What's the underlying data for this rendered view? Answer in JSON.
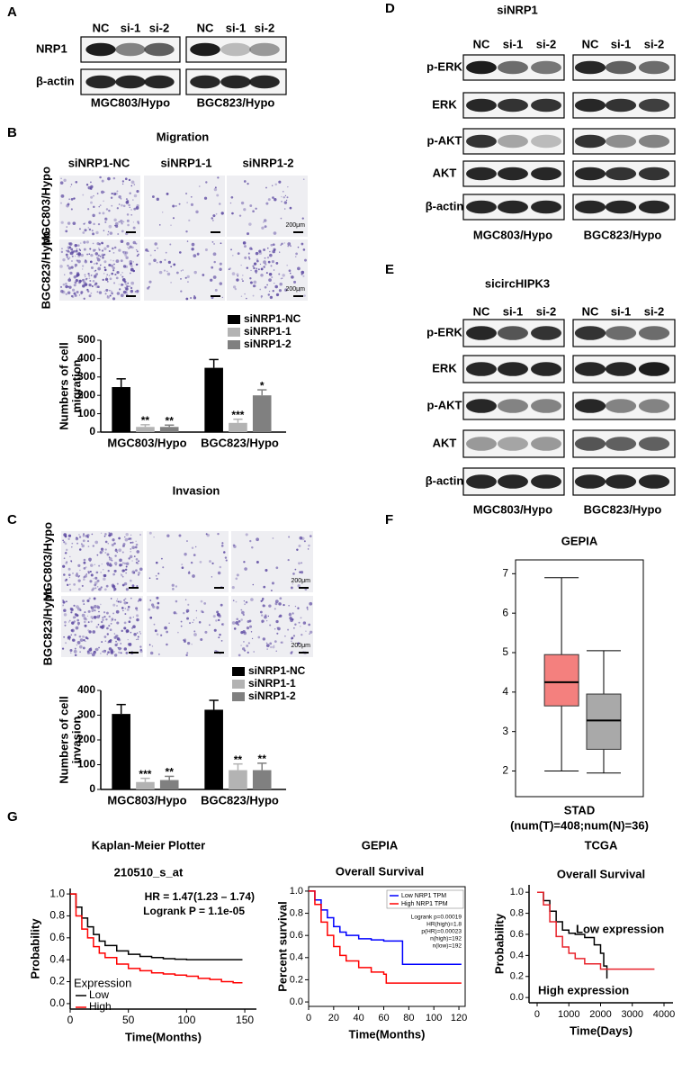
{
  "panel_labels": [
    "A",
    "B",
    "C",
    "D",
    "E",
    "F",
    "G"
  ],
  "blot_a": {
    "lanes": [
      "NC",
      "si-1",
      "si-2",
      "NC",
      "si-1",
      "si-2"
    ],
    "rows": [
      "NRP1",
      "β-actin"
    ],
    "cell_lines": [
      "MGC803/Hypo",
      "BGC823/Hypo"
    ]
  },
  "micro_b": {
    "title": "Migration",
    "columns": [
      "siNRP1-NC",
      "siNRP1-1",
      "siNRP1-2"
    ],
    "rows": [
      "MGC803/Hypo",
      "BGC823/Hypo"
    ],
    "scale": "200μm"
  },
  "micro_c": {
    "title": "Invasion",
    "columns": [
      "siNRP1-NC",
      "siNRP1-1",
      "siNRP1-2"
    ],
    "rows": [
      "MGC803/Hypo",
      "BGC823/Hypo"
    ],
    "scale": "200μm"
  },
  "blot_d": {
    "title": "siNRP1",
    "lanes": [
      "NC",
      "si-1",
      "si-2",
      "NC",
      "si-1",
      "si-2"
    ],
    "rows": [
      "p-ERK",
      "ERK",
      "p-AKT",
      "AKT",
      "β-actin"
    ],
    "cell_lines": [
      "MGC803/Hypo",
      "BGC823/Hypo"
    ]
  },
  "blot_e": {
    "title": "sicircHIPK3",
    "lanes": [
      "NC",
      "si-1",
      "si-2",
      "NC",
      "si-1",
      "si-2"
    ],
    "rows": [
      "p-ERK",
      "ERK",
      "p-AKT",
      "AKT",
      "β-actin"
    ],
    "cell_lines": [
      "MGC803/Hypo",
      "BGC823/Hypo"
    ]
  },
  "chart_data": [
    {
      "type": "bar",
      "ylabel": [
        "Numbers of cell",
        "migration"
      ],
      "categories": [
        "MGC803/Hypo",
        "BGC823/Hypo"
      ],
      "ylim": [
        0,
        500
      ],
      "yticks": [
        0,
        100,
        200,
        300,
        400,
        500
      ],
      "series": [
        {
          "name": "siNRP1-NC",
          "color": "#000000",
          "values": [
            245,
            350
          ],
          "errors": [
            45,
            45
          ]
        },
        {
          "name": "siNRP1-1",
          "color": "#b3b3b3",
          "values": [
            28,
            50
          ],
          "errors": [
            12,
            20
          ],
          "significance": [
            "**",
            "***"
          ]
        },
        {
          "name": "siNRP1-2",
          "color": "#808080",
          "values": [
            28,
            200
          ],
          "errors": [
            10,
            30
          ],
          "significance": [
            "**",
            "*"
          ]
        }
      ]
    },
    {
      "type": "bar",
      "ylabel": [
        "Numbers of cell",
        "invasion"
      ],
      "categories": [
        "MGC803/Hypo",
        "BGC823/Hypo"
      ],
      "ylim": [
        0,
        400
      ],
      "yticks": [
        0,
        100,
        200,
        300,
        400
      ],
      "series": [
        {
          "name": "siNRP1-NC",
          "color": "#000000",
          "values": [
            305,
            322
          ],
          "errors": [
            38,
            38
          ]
        },
        {
          "name": "siNRP1-1",
          "color": "#b3b3b3",
          "values": [
            30,
            78
          ],
          "errors": [
            15,
            25
          ],
          "significance": [
            "***",
            "**"
          ]
        },
        {
          "name": "siNRP1-2",
          "color": "#808080",
          "values": [
            38,
            78
          ],
          "errors": [
            15,
            28
          ],
          "significance": [
            "**",
            "**"
          ]
        }
      ]
    },
    {
      "type": "box",
      "title": "GEPIA",
      "xlabel": [
        "STAD",
        "(num(T)=408;num(N)=36)"
      ],
      "ylim": [
        1.35,
        7.35
      ],
      "yticks": [
        2,
        3,
        4,
        5,
        6,
        7
      ],
      "boxes": [
        {
          "color": "#f4807e",
          "min": 2.0,
          "q1": 3.65,
          "median": 4.25,
          "q3": 4.95,
          "max": 6.9
        },
        {
          "color": "#a9a9a9",
          "min": 1.95,
          "q1": 2.55,
          "median": 3.28,
          "q3": 3.95,
          "max": 5.05
        }
      ]
    },
    {
      "type": "survival",
      "title": "Kaplan-Meier Plotter",
      "subtitle": "210510_s_at",
      "xlabel": "Time(Months)",
      "ylabel": "Probability",
      "xlim": [
        0,
        160
      ],
      "xticks": [
        0,
        50,
        100,
        150
      ],
      "ylim": [
        -0.05,
        1.05
      ],
      "yticks": [
        {
          "value": 0,
          "label": "0.0"
        },
        0.2,
        0.4,
        0.6,
        0.8,
        {
          "value": 1,
          "label": "1.0"
        }
      ],
      "annotations": [
        "HR = 1.47(1.23 – 1.74)",
        "Logrank P = 1.1e-05"
      ],
      "legend_title": "Expression",
      "series": [
        {
          "name": "Low",
          "color": "#000000",
          "x": [
            0,
            5,
            10,
            15,
            20,
            25,
            30,
            40,
            50,
            60,
            70,
            80,
            90,
            100,
            110,
            120,
            130,
            140,
            148
          ],
          "values": [
            1,
            0.88,
            0.78,
            0.7,
            0.63,
            0.57,
            0.53,
            0.48,
            0.45,
            0.43,
            0.42,
            0.41,
            0.405,
            0.4,
            0.4,
            0.4,
            0.4,
            0.4,
            0.4
          ]
        },
        {
          "name": "High",
          "color": "#ff0000",
          "x": [
            0,
            5,
            10,
            15,
            20,
            25,
            30,
            40,
            50,
            60,
            70,
            80,
            90,
            100,
            110,
            120,
            130,
            140,
            148
          ],
          "values": [
            1,
            0.8,
            0.68,
            0.6,
            0.52,
            0.46,
            0.42,
            0.36,
            0.32,
            0.3,
            0.28,
            0.27,
            0.26,
            0.25,
            0.23,
            0.22,
            0.2,
            0.19,
            0.19
          ]
        }
      ]
    },
    {
      "type": "survival",
      "title": "GEPIA",
      "subtitle": "Overall Survival",
      "xlabel": "Time(Months)",
      "ylabel": "Percent survival",
      "xlim": [
        0,
        125
      ],
      "xticks": [
        0,
        20,
        40,
        60,
        80,
        100,
        120
      ],
      "ylim": [
        -0.04,
        1.04
      ],
      "yticks": [
        {
          "value": 0,
          "label": "0.0"
        },
        0.2,
        0.4,
        0.6,
        0.8,
        {
          "value": 1,
          "label": "1.0"
        }
      ],
      "annotations": [
        "Logrank p=0.00019",
        "HR(high)=1.8",
        "p(HR)=0.00023",
        "n(high)=192",
        "n(low)=192"
      ],
      "series": [
        {
          "name": "Low NRP1 TPM",
          "color": "#0000ff",
          "x": [
            0,
            5,
            10,
            15,
            20,
            25,
            30,
            40,
            50,
            60,
            62,
            75,
            80,
            100,
            122
          ],
          "values": [
            1,
            0.92,
            0.83,
            0.76,
            0.68,
            0.63,
            0.6,
            0.57,
            0.56,
            0.55,
            0.55,
            0.34,
            0.34,
            0.34,
            0.34
          ]
        },
        {
          "name": "High NRP1 TPM",
          "color": "#ff0000",
          "x": [
            0,
            5,
            10,
            15,
            20,
            25,
            30,
            40,
            50,
            60,
            62,
            75,
            80,
            100,
            122
          ],
          "values": [
            1,
            0.88,
            0.72,
            0.6,
            0.5,
            0.42,
            0.37,
            0.31,
            0.27,
            0.25,
            0.17,
            0.17,
            0.17,
            0.17,
            0.17
          ]
        }
      ]
    },
    {
      "type": "survival",
      "title": "TCGA",
      "subtitle": "Overall Survival",
      "xlabel": "Time(Days)",
      "ylabel": "Probability",
      "xlim": [
        -255,
        4284
      ],
      "xticks": [
        0,
        1000,
        2000,
        3000,
        4000
      ],
      "ylim": [
        -0.05,
        1.07
      ],
      "yticks": [
        {
          "value": 0,
          "label": "0.0"
        },
        0.2,
        0.4,
        0.6,
        0.8,
        {
          "value": 1,
          "label": "1.0"
        }
      ],
      "series": [
        {
          "name": "Low expression",
          "color": "#000000",
          "x": [
            0,
            200,
            400,
            600,
            800,
            1000,
            1200,
            1500,
            1800,
            2000,
            2100,
            2200
          ],
          "values": [
            1,
            0.92,
            0.82,
            0.72,
            0.64,
            0.61,
            0.6,
            0.57,
            0.5,
            0.42,
            0.3,
            0.18
          ]
        },
        {
          "name": "High expression",
          "color": "#e8232b",
          "x": [
            0,
            200,
            400,
            600,
            800,
            1000,
            1200,
            1500,
            2000,
            2500,
            3000,
            3700
          ],
          "values": [
            1,
            0.88,
            0.72,
            0.58,
            0.48,
            0.42,
            0.37,
            0.32,
            0.27,
            0.27,
            0.27,
            0.27
          ]
        }
      ]
    }
  ]
}
